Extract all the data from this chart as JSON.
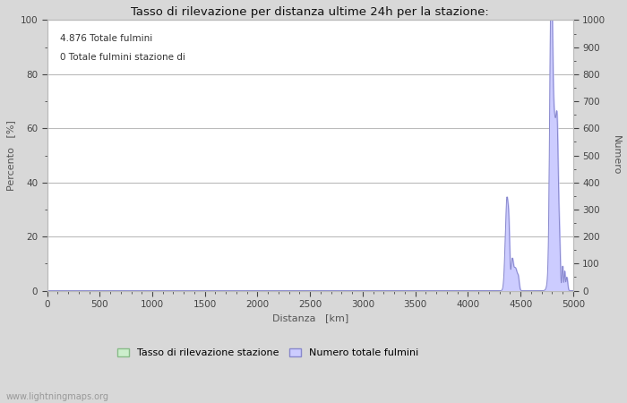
{
  "title": "Tasso di rilevazione per distanza ultime 24h per la stazione:",
  "annotation_line1": "4.876 Totale fulmini",
  "annotation_line2": "0 Totale fulmini stazione di",
  "xlabel": "Distanza   [km]",
  "ylabel_left": "Percento   [%]",
  "ylabel_right": "Numero",
  "xlim": [
    0,
    5000
  ],
  "ylim_left": [
    0,
    100
  ],
  "ylim_right": [
    0,
    1000
  ],
  "xticks": [
    0,
    500,
    1000,
    1500,
    2000,
    2500,
    3000,
    3500,
    4000,
    4500,
    5000
  ],
  "yticks_left": [
    0,
    20,
    40,
    60,
    80,
    100
  ],
  "yticks_right": [
    0,
    100,
    200,
    300,
    400,
    500,
    600,
    700,
    800,
    900,
    1000
  ],
  "legend_label_green": "Tasso di rilevazione stazione",
  "legend_label_blue": "Numero totale fulmini",
  "bg_color": "#d8d8d8",
  "plot_bg_color": "#ffffff",
  "grid_color": "#bbbbbb",
  "bar_color_blue": "#ccccff",
  "bar_edge_color_blue": "#8888cc",
  "bar_color_green": "#cceecc",
  "bar_edge_color_green": "#88bb88",
  "watermark": "www.lightningmaps.org",
  "tick_color": "#444444",
  "axis_label_color": "#555555",
  "title_color": "#111111",
  "annotation_color": "#333333"
}
